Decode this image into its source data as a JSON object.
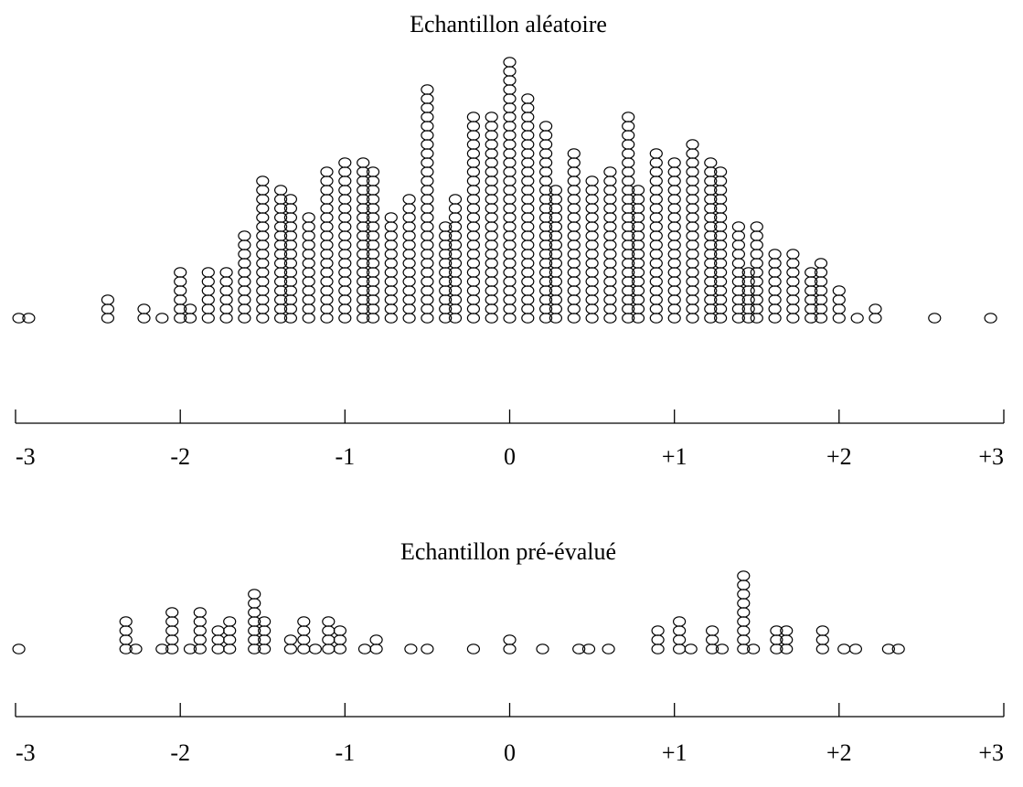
{
  "chart_data": [
    {
      "type": "scatter",
      "subtype": "dot-plot",
      "title": "Echantillon aléatoire",
      "xlim": [
        -3,
        3
      ],
      "grid": false,
      "ticks": [
        {
          "value": -3,
          "label": "-3"
        },
        {
          "value": -2,
          "label": "-2"
        },
        {
          "value": -1,
          "label": "-1"
        },
        {
          "value": 0,
          "label": "0"
        },
        {
          "value": 1,
          "label": "+1"
        },
        {
          "value": 2,
          "label": "+2"
        },
        {
          "value": 3,
          "label": "+3"
        }
      ],
      "stacks": [
        {
          "x": -2.98,
          "count": 1
        },
        {
          "x": -2.92,
          "count": 1
        },
        {
          "x": -2.44,
          "count": 3
        },
        {
          "x": -2.22,
          "count": 2
        },
        {
          "x": -2.11,
          "count": 1
        },
        {
          "x": -2.0,
          "count": 6
        },
        {
          "x": -1.94,
          "count": 2
        },
        {
          "x": -1.83,
          "count": 6
        },
        {
          "x": -1.72,
          "count": 6
        },
        {
          "x": -1.61,
          "count": 10
        },
        {
          "x": -1.5,
          "count": 16
        },
        {
          "x": -1.39,
          "count": 15
        },
        {
          "x": -1.33,
          "count": 14
        },
        {
          "x": -1.22,
          "count": 12
        },
        {
          "x": -1.11,
          "count": 17
        },
        {
          "x": -1.0,
          "count": 18
        },
        {
          "x": -0.89,
          "count": 18
        },
        {
          "x": -0.83,
          "count": 17
        },
        {
          "x": -0.72,
          "count": 12
        },
        {
          "x": -0.61,
          "count": 14
        },
        {
          "x": -0.5,
          "count": 26
        },
        {
          "x": -0.39,
          "count": 11
        },
        {
          "x": -0.33,
          "count": 14
        },
        {
          "x": -0.22,
          "count": 23
        },
        {
          "x": -0.11,
          "count": 23
        },
        {
          "x": 0.0,
          "count": 29
        },
        {
          "x": 0.11,
          "count": 25
        },
        {
          "x": 0.22,
          "count": 22
        },
        {
          "x": 0.28,
          "count": 15
        },
        {
          "x": 0.39,
          "count": 19
        },
        {
          "x": 0.5,
          "count": 16
        },
        {
          "x": 0.61,
          "count": 17
        },
        {
          "x": 0.72,
          "count": 23
        },
        {
          "x": 0.78,
          "count": 15
        },
        {
          "x": 0.89,
          "count": 19
        },
        {
          "x": 1.0,
          "count": 18
        },
        {
          "x": 1.11,
          "count": 20
        },
        {
          "x": 1.22,
          "count": 18
        },
        {
          "x": 1.28,
          "count": 17
        },
        {
          "x": 1.39,
          "count": 11
        },
        {
          "x": 1.45,
          "count": 6
        },
        {
          "x": 1.5,
          "count": 11
        },
        {
          "x": 1.61,
          "count": 8
        },
        {
          "x": 1.72,
          "count": 8
        },
        {
          "x": 1.83,
          "count": 6
        },
        {
          "x": 1.89,
          "count": 7
        },
        {
          "x": 2.0,
          "count": 4
        },
        {
          "x": 2.11,
          "count": 1
        },
        {
          "x": 2.22,
          "count": 2
        },
        {
          "x": 2.58,
          "count": 1
        },
        {
          "x": 2.92,
          "count": 1
        }
      ]
    },
    {
      "type": "scatter",
      "subtype": "dot-plot",
      "title": "Echantillon pré-évalué",
      "xlim": [
        -3,
        3
      ],
      "grid": false,
      "ticks": [
        {
          "value": -3,
          "label": "-3"
        },
        {
          "value": -2,
          "label": "-2"
        },
        {
          "value": -1,
          "label": "-1"
        },
        {
          "value": 0,
          "label": "0"
        },
        {
          "value": 1,
          "label": "+1"
        },
        {
          "value": 2,
          "label": "+2"
        },
        {
          "value": 3,
          "label": "+3"
        }
      ],
      "stacks": [
        {
          "x": -2.98,
          "count": 1
        },
        {
          "x": -2.33,
          "count": 4
        },
        {
          "x": -2.27,
          "count": 1
        },
        {
          "x": -2.11,
          "count": 1
        },
        {
          "x": -2.05,
          "count": 5
        },
        {
          "x": -1.94,
          "count": 1
        },
        {
          "x": -1.88,
          "count": 5
        },
        {
          "x": -1.77,
          "count": 3
        },
        {
          "x": -1.7,
          "count": 4
        },
        {
          "x": -1.55,
          "count": 7
        },
        {
          "x": -1.49,
          "count": 4
        },
        {
          "x": -1.33,
          "count": 2
        },
        {
          "x": -1.25,
          "count": 4
        },
        {
          "x": -1.18,
          "count": 1
        },
        {
          "x": -1.1,
          "count": 4
        },
        {
          "x": -1.03,
          "count": 3
        },
        {
          "x": -0.88,
          "count": 1
        },
        {
          "x": -0.81,
          "count": 2
        },
        {
          "x": -0.6,
          "count": 1
        },
        {
          "x": -0.5,
          "count": 1
        },
        {
          "x": -0.22,
          "count": 1
        },
        {
          "x": 0.0,
          "count": 2
        },
        {
          "x": 0.2,
          "count": 1
        },
        {
          "x": 0.42,
          "count": 1
        },
        {
          "x": 0.48,
          "count": 1
        },
        {
          "x": 0.6,
          "count": 1
        },
        {
          "x": 0.9,
          "count": 3
        },
        {
          "x": 1.03,
          "count": 4
        },
        {
          "x": 1.1,
          "count": 1
        },
        {
          "x": 1.23,
          "count": 3
        },
        {
          "x": 1.29,
          "count": 1
        },
        {
          "x": 1.42,
          "count": 9
        },
        {
          "x": 1.48,
          "count": 1
        },
        {
          "x": 1.62,
          "count": 3
        },
        {
          "x": 1.68,
          "count": 3
        },
        {
          "x": 1.9,
          "count": 3
        },
        {
          "x": 2.03,
          "count": 1
        },
        {
          "x": 2.1,
          "count": 1
        },
        {
          "x": 2.3,
          "count": 1
        },
        {
          "x": 2.36,
          "count": 1
        }
      ]
    }
  ]
}
